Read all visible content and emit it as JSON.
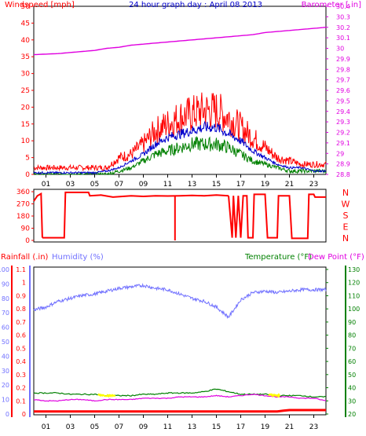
{
  "chart_data": [
    {
      "type": "line",
      "title": "24 hour graph day : April 08 2013",
      "left_axis_label": "Windspeed [mph]",
      "right_axis_label": "Barometer [.in]",
      "colors": {
        "windspeed_gust": "#ff0000",
        "windspeed_avg": "#0000cc",
        "windspeed_min": "#008000",
        "barometer": "#e000e0"
      },
      "y_left_ticks": [
        "0",
        "5",
        "10",
        "15",
        "20",
        "25",
        "30",
        "35",
        "40",
        "45",
        "50"
      ],
      "ylim_left": [
        0,
        50
      ],
      "y_right_ticks": [
        "28.8",
        "28.9",
        "29",
        "29.1",
        "29.2",
        "29.3",
        "29.4",
        "29.5",
        "29.6",
        "29.7",
        "29.8",
        "29.9",
        "30",
        "30.1",
        "30.2",
        "30.3",
        "30.4"
      ],
      "ylim_right": [
        28.8,
        30.4
      ],
      "x": [
        0,
        1,
        2,
        3,
        4,
        5,
        6,
        7,
        8,
        9,
        10,
        11,
        12,
        13,
        14,
        15,
        16,
        17,
        18,
        19,
        20,
        21,
        22,
        23,
        24
      ],
      "series": [
        {
          "name": "Barometer",
          "axis": "right",
          "values": [
            29.94,
            29.945,
            29.95,
            29.96,
            29.97,
            29.98,
            30.0,
            30.01,
            30.03,
            30.04,
            30.05,
            30.06,
            30.07,
            30.08,
            30.09,
            30.1,
            30.11,
            30.12,
            30.13,
            30.15,
            30.16,
            30.17,
            30.18,
            30.19,
            30.2
          ]
        },
        {
          "name": "Gust",
          "axis": "left",
          "values": [
            2,
            2,
            2,
            2,
            2,
            2,
            2,
            5,
            6,
            9,
            13,
            15,
            17,
            18,
            19,
            19,
            17,
            14,
            11,
            8,
            5,
            4,
            3,
            3,
            3
          ]
        },
        {
          "name": "Average",
          "axis": "left",
          "values": [
            0.5,
            0.5,
            0.5,
            0.5,
            0.5,
            0.5,
            1,
            2,
            4,
            6,
            9,
            11,
            12,
            13,
            14,
            14,
            12,
            10,
            7,
            5,
            3,
            2,
            2,
            1,
            1
          ]
        },
        {
          "name": "Minimum",
          "axis": "left",
          "values": [
            0,
            0,
            0,
            0,
            0,
            0,
            0,
            1,
            2,
            4,
            6,
            7,
            8,
            9,
            9,
            9,
            8,
            6,
            4,
            3,
            2,
            1,
            1,
            1,
            1
          ]
        }
      ]
    },
    {
      "type": "line",
      "y_ticks": [
        "0",
        "90",
        "180",
        "270",
        "360"
      ],
      "ylim": [
        0,
        360
      ],
      "compass_labels": [
        "N",
        "W",
        "S",
        "E",
        "N"
      ],
      "color": "#ff0000",
      "segments": [
        [
          [
            0,
            290
          ],
          [
            0.3,
            330
          ],
          [
            0.6,
            345
          ],
          [
            0.7,
            20
          ]
        ],
        [
          [
            0.7,
            20
          ],
          [
            2.5,
            20
          ],
          [
            2.6,
            355
          ],
          [
            4.5,
            355
          ],
          [
            4.6,
            330
          ],
          [
            5.5,
            335
          ],
          [
            6.5,
            320
          ],
          [
            8,
            330
          ],
          [
            9,
            325
          ],
          [
            10,
            330
          ],
          [
            11,
            328
          ],
          [
            12,
            330
          ],
          [
            13,
            332
          ],
          [
            14,
            330
          ],
          [
            15,
            335
          ],
          [
            16,
            330
          ]
        ],
        [
          [
            16,
            330
          ],
          [
            16.3,
            20
          ],
          [
            16.4,
            330
          ],
          [
            16.6,
            20
          ],
          [
            16.8,
            330
          ],
          [
            17,
            20
          ],
          [
            17.2,
            330
          ],
          [
            17.5,
            330
          ],
          [
            17.6,
            20
          ],
          [
            18,
            20
          ],
          [
            18.1,
            340
          ],
          [
            19,
            340
          ],
          [
            19.2,
            20
          ],
          [
            20,
            20
          ],
          [
            20.1,
            330
          ],
          [
            21,
            330
          ],
          [
            21.2,
            15
          ],
          [
            22.5,
            15
          ],
          [
            22.6,
            340
          ],
          [
            23,
            340
          ],
          [
            23.1,
            320
          ],
          [
            24,
            320
          ]
        ]
      ],
      "spikes": [
        [
          11.6,
          0
        ]
      ]
    },
    {
      "type": "line",
      "left_axis_labels": [
        "Rainfall (.in)",
        "Humidity (%)"
      ],
      "right_axis_labels": [
        "Temperature (°F)",
        "Dew Point (°F)"
      ],
      "colors": {
        "rainfall": "#ff0000",
        "humidity": "#7070ff",
        "temperature": "#008000",
        "dewpoint": "#e000e0",
        "highlight": "#ffff00"
      },
      "y_rain_ticks": [
        "0",
        "0.1",
        "0.2",
        "0.3",
        "0.4",
        "0.5",
        "0.6",
        "0.7",
        "0.8",
        "0.9",
        "1",
        "1.1"
      ],
      "ylim_rain": [
        0,
        1.1
      ],
      "y_humidity_ticks": [
        "0",
        "10",
        "20",
        "30",
        "40",
        "50",
        "60",
        "70",
        "80",
        "90",
        "100"
      ],
      "ylim_humidity": [
        0,
        100
      ],
      "y_temp_ticks": [
        "20",
        "30",
        "40",
        "50",
        "60",
        "70",
        "80",
        "90",
        "100",
        "110",
        "120",
        "130"
      ],
      "ylim_temp": [
        20,
        130
      ],
      "x": [
        0,
        1,
        2,
        3,
        4,
        5,
        6,
        7,
        8,
        9,
        10,
        11,
        12,
        13,
        14,
        15,
        16,
        17,
        18,
        19,
        20,
        21,
        22,
        23,
        24
      ],
      "series": [
        {
          "name": "Humidity",
          "axis": "humidity",
          "values": [
            72,
            74,
            78,
            80,
            82,
            83,
            85,
            87,
            88,
            89,
            87,
            86,
            83,
            80,
            78,
            74,
            67,
            79,
            84,
            85,
            84,
            85,
            86,
            86,
            86
          ]
        },
        {
          "name": "Temperature",
          "axis": "temp",
          "values": [
            36,
            36,
            36,
            35,
            35,
            35,
            34,
            34,
            34,
            35,
            35,
            36,
            36,
            36,
            37,
            39,
            37,
            35,
            35,
            35,
            34,
            34,
            34,
            33,
            33
          ]
        },
        {
          "name": "Dew Point",
          "axis": "temp",
          "values": [
            31,
            30,
            30,
            31,
            31,
            30,
            31,
            31,
            31,
            32,
            32,
            32,
            33,
            33,
            33,
            34,
            33,
            34,
            35,
            34,
            33,
            33,
            32,
            32,
            30
          ]
        },
        {
          "name": "Rainfall",
          "axis": "rain",
          "values": [
            0.02,
            0.02,
            0.02,
            0.02,
            0.02,
            0.02,
            0.02,
            0.02,
            0.02,
            0.02,
            0.02,
            0.02,
            0.02,
            0.02,
            0.02,
            0.02,
            0.02,
            0.02,
            0.02,
            0.02,
            0.02,
            0.03,
            0.03,
            0.03,
            0.03
          ]
        }
      ]
    }
  ],
  "x_tick_labels": [
    "01",
    "03",
    "05",
    "07",
    "09",
    "11",
    "13",
    "15",
    "17",
    "19",
    "21",
    "23"
  ]
}
